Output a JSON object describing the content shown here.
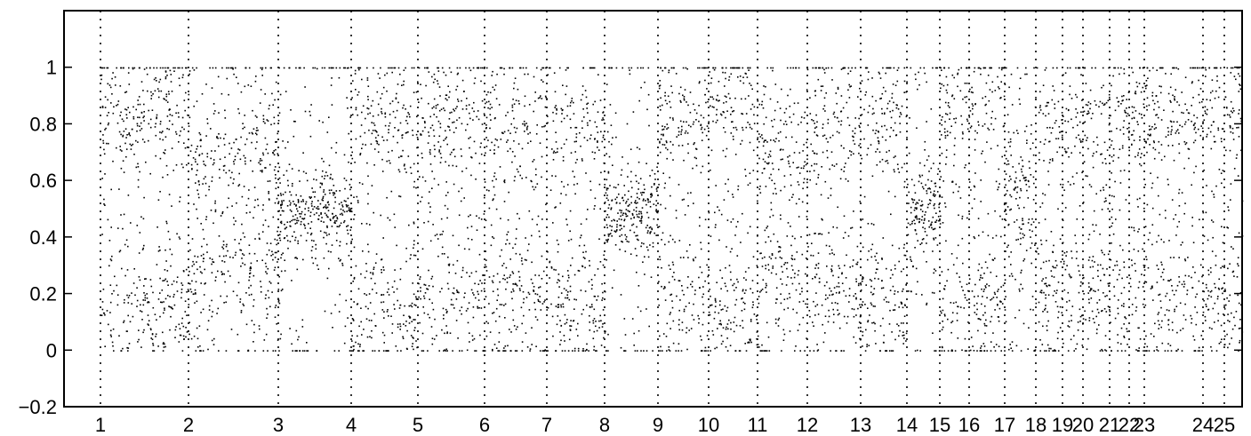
{
  "chart_data": {
    "type": "scatter",
    "title": "",
    "xlabel": "",
    "ylabel": "",
    "ylim": [
      -0.2,
      1.2
    ],
    "y_ticks": [
      {
        "value": -0.2,
        "label": "−0.2"
      },
      {
        "value": 0,
        "label": "0"
      },
      {
        "value": 0.2,
        "label": "0.2"
      },
      {
        "value": 0.4,
        "label": "0.4"
      },
      {
        "value": 0.6,
        "label": "0.6"
      },
      {
        "value": 0.8,
        "label": "0.8"
      },
      {
        "value": 1,
        "label": "1"
      }
    ],
    "chromosome_labels": [
      "1",
      "2",
      "3",
      "4",
      "5",
      "6",
      "7",
      "8",
      "9",
      "10",
      "11",
      "12",
      "13",
      "14",
      "15",
      "16",
      "17",
      "18",
      "19",
      "20",
      "21",
      "22",
      "23",
      "24",
      "25"
    ],
    "marker_color": "#000000",
    "grid": false,
    "boundary_lines": "dotted vertical at each chromosome label",
    "segments": [
      {
        "chromosome": "1",
        "pattern": "split",
        "bands": [
          0.15,
          0.85
        ]
      },
      {
        "chromosome": "2",
        "pattern": "mixed",
        "bands": [
          0.3,
          0.7
        ]
      },
      {
        "chromosome": "3",
        "pattern": "center",
        "bands": [
          0.5
        ]
      },
      {
        "chromosome": "4",
        "pattern": "split",
        "bands": [
          0.15,
          0.8
        ]
      },
      {
        "chromosome": "5",
        "pattern": "mixed",
        "bands": [
          0.2,
          0.8
        ]
      },
      {
        "chromosome": "6",
        "pattern": "split",
        "bands": [
          0.2,
          0.8
        ]
      },
      {
        "chromosome": "7",
        "pattern": "split",
        "bands": [
          0.15,
          0.8
        ]
      },
      {
        "chromosome": "8",
        "pattern": "center",
        "bands": [
          0.5
        ]
      },
      {
        "chromosome": "9",
        "pattern": "split",
        "bands": [
          0.2,
          0.8
        ]
      },
      {
        "chromosome": "10",
        "pattern": "split",
        "bands": [
          0.15,
          0.85
        ]
      },
      {
        "chromosome": "11",
        "pattern": "mixed",
        "bands": [
          0.3,
          0.7
        ]
      },
      {
        "chromosome": "12",
        "pattern": "split",
        "bands": [
          0.2,
          0.8
        ]
      },
      {
        "chromosome": "13",
        "pattern": "split",
        "bands": [
          0.2,
          0.8
        ]
      },
      {
        "chromosome": "14",
        "pattern": "center",
        "bands": [
          0.5
        ]
      },
      {
        "chromosome": "15",
        "pattern": "split",
        "bands": [
          0.15,
          0.85
        ]
      },
      {
        "chromosome": "16",
        "pattern": "split",
        "bands": [
          0.15,
          0.85
        ]
      },
      {
        "chromosome": "17",
        "pattern": "mixed",
        "bands": [
          0.4,
          0.6
        ]
      },
      {
        "chromosome": "18",
        "pattern": "split",
        "bands": [
          0.2,
          0.8
        ]
      },
      {
        "chromosome": "19",
        "pattern": "split",
        "bands": [
          0.2,
          0.8
        ]
      },
      {
        "chromosome": "20",
        "pattern": "split",
        "bands": [
          0.2,
          0.8
        ]
      },
      {
        "chromosome": "21",
        "pattern": "split",
        "bands": [
          0.2,
          0.8
        ]
      },
      {
        "chromosome": "22",
        "pattern": "split",
        "bands": [
          0.2,
          0.8
        ]
      },
      {
        "chromosome": "23",
        "pattern": "split",
        "bands": [
          0.2,
          0.8
        ]
      },
      {
        "chromosome": "24",
        "pattern": "split",
        "bands": [
          0.2,
          0.8
        ]
      },
      {
        "chromosome": "25",
        "pattern": "split",
        "bands": [
          0.2,
          0.8
        ]
      }
    ]
  }
}
